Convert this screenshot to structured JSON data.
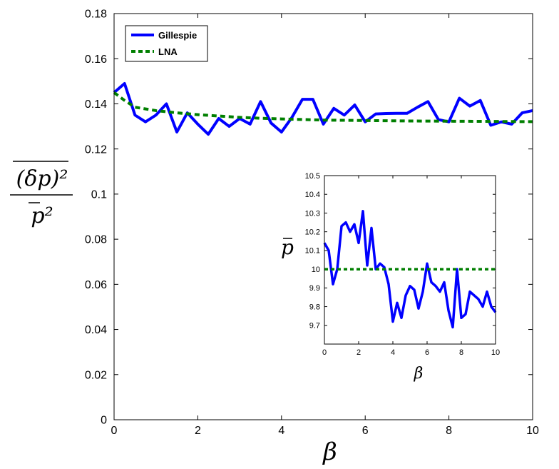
{
  "chart_data": [
    {
      "type": "line",
      "xlabel": "β",
      "ylabel": {
        "numerator": "(δp)²",
        "denominator": "p²"
      },
      "xlim": [
        0,
        10
      ],
      "ylim": [
        0,
        0.18
      ],
      "xticks": [
        "0",
        "2",
        "4",
        "6",
        "8",
        "10"
      ],
      "yticks": [
        "0",
        "0.02",
        "0.04",
        "0.06",
        "0.08",
        "0.1",
        "0.12",
        "0.14",
        "0.16",
        "0.18"
      ],
      "legend_position": "top-left",
      "series": [
        {
          "name": "Gillespie",
          "color": "#0000ff",
          "style": "solid",
          "x": [
            0,
            0.25,
            0.5,
            0.75,
            1.0,
            1.25,
            1.5,
            1.75,
            2.0,
            2.25,
            2.5,
            2.75,
            3.0,
            3.25,
            3.5,
            3.75,
            4.0,
            4.25,
            4.5,
            4.75,
            5.0,
            5.25,
            5.5,
            5.75,
            6.0,
            6.25,
            6.5,
            6.75,
            7.0,
            7.25,
            7.5,
            7.75,
            8.0,
            8.25,
            8.5,
            8.75,
            9.0,
            9.25,
            9.5,
            9.75,
            10.0
          ],
          "y": [
            0.145,
            0.149,
            0.135,
            0.132,
            0.135,
            0.14,
            0.1275,
            0.136,
            0.131,
            0.1265,
            0.1335,
            0.13,
            0.1335,
            0.131,
            0.141,
            0.1315,
            0.1275,
            0.134,
            0.142,
            0.142,
            0.131,
            0.138,
            0.135,
            0.1395,
            0.132,
            0.1355,
            0.1357,
            0.1358,
            0.1358,
            0.1385,
            0.141,
            0.133,
            0.132,
            0.1425,
            0.139,
            0.1415,
            0.1305,
            0.132,
            0.131,
            0.136,
            0.137
          ]
        },
        {
          "name": "LNA",
          "color": "#007f00",
          "style": "dashed",
          "x": [
            0,
            0.25,
            0.5,
            1.0,
            1.5,
            2.0,
            2.5,
            3.0,
            3.5,
            4.0,
            5.0,
            6.0,
            7.0,
            8.0,
            9.0,
            10.0
          ],
          "y": [
            0.145,
            0.1415,
            0.1385,
            0.137,
            0.136,
            0.1352,
            0.1346,
            0.134,
            0.1336,
            0.1333,
            0.1328,
            0.1326,
            0.1324,
            0.1323,
            0.1322,
            0.1321
          ]
        }
      ]
    },
    {
      "type": "line",
      "xlabel": "β",
      "ylabel": "p",
      "xlim": [
        0,
        10
      ],
      "ylim": [
        9.6,
        10.5
      ],
      "xticks": [
        "0",
        "2",
        "4",
        "6",
        "8",
        "10"
      ],
      "yticks": [
        "9.7",
        "9.8",
        "9.9",
        "10",
        "10.1",
        "10.2",
        "10.3",
        "10.4",
        "10.5"
      ],
      "series": [
        {
          "color": "#0000ff",
          "style": "solid",
          "x": [
            0,
            0.25,
            0.5,
            0.75,
            1.0,
            1.25,
            1.5,
            1.75,
            2.0,
            2.25,
            2.5,
            2.75,
            3.0,
            3.25,
            3.5,
            3.75,
            4.0,
            4.25,
            4.5,
            4.75,
            5.0,
            5.25,
            5.5,
            5.75,
            6.0,
            6.25,
            6.5,
            6.75,
            7.0,
            7.25,
            7.5,
            7.75,
            8.0,
            8.25,
            8.5,
            8.75,
            9.0,
            9.25,
            9.5,
            9.75,
            10.0
          ],
          "y": [
            10.14,
            10.1,
            9.92,
            10.0,
            10.23,
            10.25,
            10.2,
            10.24,
            10.14,
            10.31,
            10.02,
            10.22,
            10.0,
            10.03,
            10.01,
            9.92,
            9.72,
            9.82,
            9.74,
            9.86,
            9.91,
            9.89,
            9.79,
            9.88,
            10.03,
            9.93,
            9.91,
            9.88,
            9.93,
            9.78,
            9.69,
            10.0,
            9.74,
            9.76,
            9.88,
            9.86,
            9.84,
            9.8,
            9.88,
            9.8,
            9.77
          ]
        },
        {
          "color": "#007f00",
          "style": "dashed",
          "x": [
            0,
            10
          ],
          "y": [
            10.0,
            10.0
          ]
        }
      ]
    }
  ]
}
